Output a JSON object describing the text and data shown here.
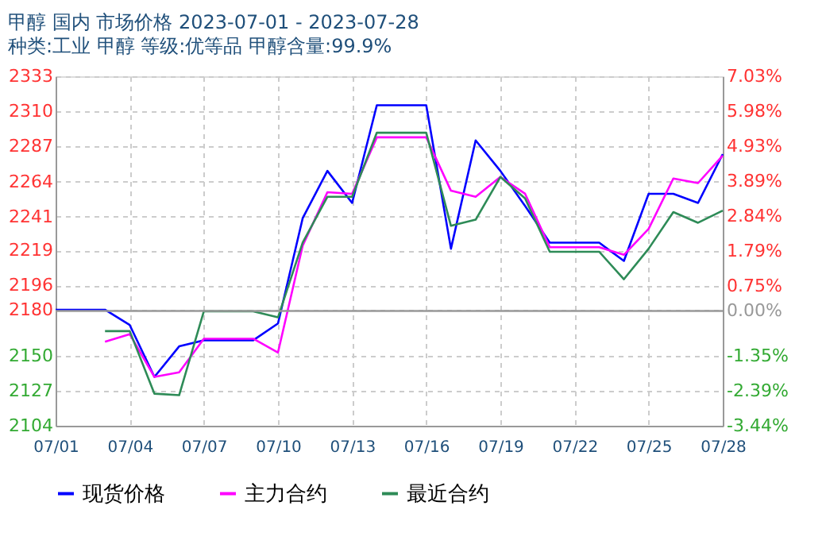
{
  "chart_data": {
    "type": "line",
    "title": "甲醇 国内 市场价格 2023-07-01 - 2023-07-28",
    "subtitle": "种类:工业 甲醇 等级:优等品 甲醇含量:99.9%",
    "x": [
      "2023-07-01",
      "2023-07-02",
      "2023-07-03",
      "2023-07-04",
      "2023-07-05",
      "2023-07-06",
      "2023-07-07",
      "2023-07-08",
      "2023-07-09",
      "2023-07-10",
      "2023-07-11",
      "2023-07-12",
      "2023-07-13",
      "2023-07-14",
      "2023-07-15",
      "2023-07-16",
      "2023-07-17",
      "2023-07-18",
      "2023-07-19",
      "2023-07-20",
      "2023-07-21",
      "2023-07-22",
      "2023-07-23",
      "2023-07-24",
      "2023-07-25",
      "2023-07-26",
      "2023-07-27",
      "2023-07-28"
    ],
    "series": [
      {
        "name": "现货价格",
        "color": "#0000ff",
        "values": [
          2180,
          2180,
          2180,
          2170,
          2136,
          2156,
          2160,
          2160,
          2160,
          2171,
          2240,
          2271,
          2250,
          2314,
          2314,
          2314,
          2220,
          2291,
          2271,
          2248,
          2224,
          2224,
          2224,
          2212,
          2256,
          2256,
          2250,
          2282
        ]
      },
      {
        "name": "主力合约",
        "color": "#ff00ff",
        "values": [
          null,
          null,
          2159,
          2164,
          2136,
          2139,
          2161,
          2161,
          2161,
          2152,
          2222,
          2257,
          2256,
          2293,
          2293,
          2293,
          2258,
          2254,
          2267,
          2256,
          2221,
          2221,
          2221,
          2216,
          2233,
          2266,
          2263,
          2281
        ]
      },
      {
        "name": "最近合约",
        "color": "#2e8b57",
        "values": [
          null,
          null,
          2166,
          2166,
          2125,
          2124,
          2179,
          2179,
          2179,
          2175,
          2224,
          2254,
          2254,
          2296,
          2296,
          2296,
          2235,
          2239,
          2267,
          2253,
          2218,
          2218,
          2218,
          2200,
          2220,
          2244,
          2237,
          2245
        ]
      }
    ],
    "xlim": [
      "2023-07-01",
      "2023-07-28"
    ],
    "xticks": [
      {
        "value": "2023-07-01",
        "label": "07/01"
      },
      {
        "value": "2023-07-04",
        "label": "07/04"
      },
      {
        "value": "2023-07-07",
        "label": "07/07"
      },
      {
        "value": "2023-07-10",
        "label": "07/10"
      },
      {
        "value": "2023-07-13",
        "label": "07/13"
      },
      {
        "value": "2023-07-16",
        "label": "07/16"
      },
      {
        "value": "2023-07-19",
        "label": "07/19"
      },
      {
        "value": "2023-07-22",
        "label": "07/22"
      },
      {
        "value": "2023-07-25",
        "label": "07/25"
      },
      {
        "value": "2023-07-28",
        "label": "07/28"
      }
    ],
    "ylim": [
      2104,
      2333
    ],
    "yticks": [
      2104,
      2127,
      2150,
      2180,
      2196,
      2219,
      2241,
      2264,
      2287,
      2310,
      2333
    ],
    "y2lim": [
      -3.44,
      7.03
    ],
    "y2ticks": [
      {
        "value": -3.44,
        "label": "-3.44%"
      },
      {
        "value": -2.39,
        "label": "-2.39%"
      },
      {
        "value": -1.35,
        "label": "-1.35%"
      },
      {
        "value": 0,
        "label": "0.00%"
      },
      {
        "value": 0.75,
        "label": "0.75%"
      },
      {
        "value": 1.79,
        "label": "1.79%"
      },
      {
        "value": 2.84,
        "label": "2.84%"
      },
      {
        "value": 3.89,
        "label": "3.89%"
      },
      {
        "value": 4.93,
        "label": "4.93%"
      },
      {
        "value": 5.98,
        "label": "5.98%"
      },
      {
        "value": 7.03,
        "label": "7.03%"
      }
    ],
    "ref_lines": [
      {
        "axis": "y2",
        "value": 0,
        "color": "#999999",
        "line_style": "solid"
      }
    ],
    "grid": true,
    "legend": "bottom",
    "marker": "none",
    "line_style": "solid"
  }
}
